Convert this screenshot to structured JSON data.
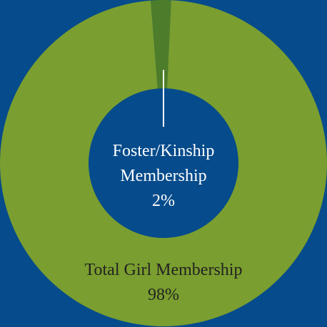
{
  "chart_data": {
    "type": "donut",
    "categories": [
      "Foster/Kinship Membership",
      "Total Girl Membership"
    ],
    "values": [
      2,
      98
    ],
    "value_labels": [
      "2%",
      "98%"
    ],
    "colors": [
      "#4d7d2a",
      "#7a9e2f"
    ]
  }
}
